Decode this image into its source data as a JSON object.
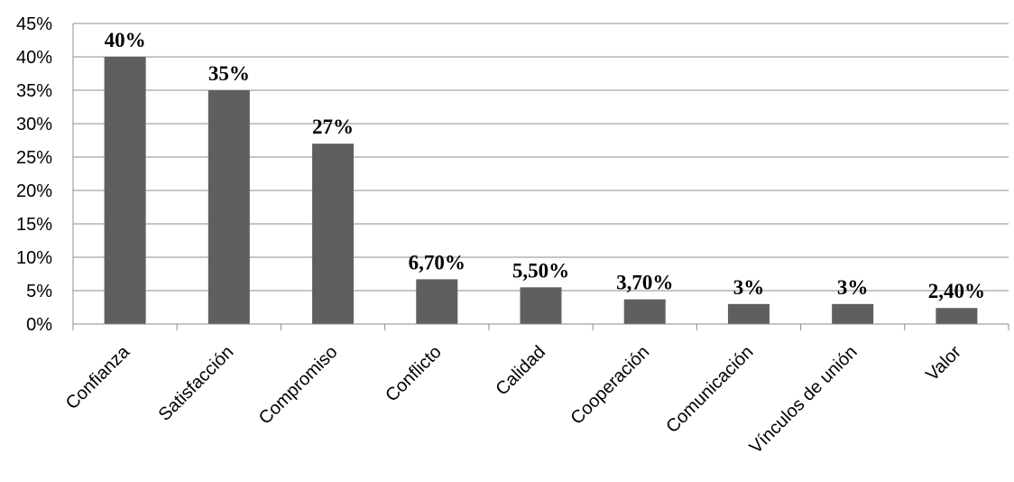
{
  "chart_data": {
    "type": "bar",
    "categories": [
      "Confianza",
      "Satisfacción",
      "Compromiso",
      "Conflicto",
      "Calidad",
      "Cooperación",
      "Comunicación",
      "Vínculos de unión",
      "Valor"
    ],
    "values": [
      40,
      35,
      27,
      6.7,
      5.5,
      3.7,
      3,
      3,
      2.4
    ],
    "data_labels": [
      "40%",
      "35%",
      "27%",
      "6,70%",
      "5,50%",
      "3,70%",
      "3%",
      "3%",
      "2,40%"
    ],
    "y_ticks": [
      "0%",
      "5%",
      "10%",
      "15%",
      "20%",
      "25%",
      "30%",
      "35%",
      "40%",
      "45%"
    ],
    "ylim": [
      0,
      45
    ],
    "y_step": 5,
    "grid": true,
    "legend": "none",
    "title": "",
    "xlabel": "",
    "ylabel": "",
    "colors": {
      "bar": "#5f5f5f",
      "grid": "#8c8c8c",
      "text": "#000000"
    }
  }
}
